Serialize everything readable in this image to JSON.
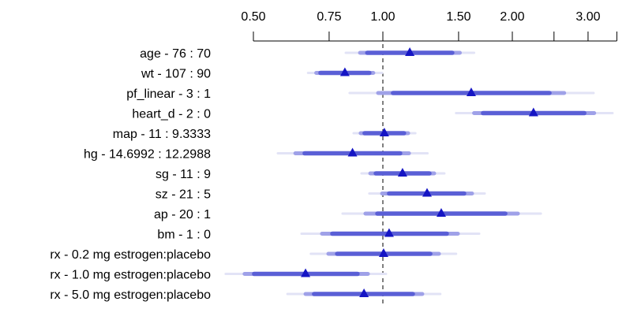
{
  "chart_data": {
    "type": "forest",
    "title": "",
    "xlabel": "",
    "x_scale": "log",
    "xlim": [
      0.42,
      3.6
    ],
    "x_ticks": [
      {
        "value": 0.5,
        "label": "0.50"
      },
      {
        "value": 0.75,
        "label": "0.75"
      },
      {
        "value": 1.0,
        "label": "1.00"
      },
      {
        "value": 1.5,
        "label": "1.50"
      },
      {
        "value": 2.0,
        "label": "2.00"
      },
      {
        "value": 2.5,
        "label": ""
      },
      {
        "value": 3.0,
        "label": "3.00"
      },
      {
        "value": 3.5,
        "label": ""
      }
    ],
    "reference_line": 1.0,
    "grid": false,
    "colors": {
      "ci_inner": "#5a5fd6",
      "ci_middle": "#9fa1e8",
      "ci_outer": "#e2e3f6",
      "point": "#1515c4",
      "reference": "#000000"
    },
    "rows": [
      {
        "label": "age - 76 : 70",
        "estimate": 1.155,
        "ci_inner": [
          0.92,
          1.45
        ],
        "ci_middle": [
          0.885,
          1.51
        ],
        "ci_outer": [
          0.82,
          1.63
        ]
      },
      {
        "label": "wt - 107 : 90",
        "estimate": 0.816,
        "ci_inner": [
          0.716,
          0.93
        ],
        "ci_middle": [
          0.7,
          0.95
        ],
        "ci_outer": [
          0.67,
          0.996
        ]
      },
      {
        "label": "pf_linear - 3 : 1",
        "estimate": 1.605,
        "ci_inner": [
          1.056,
          2.44
        ],
        "ci_middle": [
          0.975,
          2.64
        ],
        "ci_outer": [
          0.837,
          3.09
        ]
      },
      {
        "label": "heart_d - 2 : 0",
        "estimate": 2.24,
        "ci_inner": [
          1.71,
          2.94
        ],
        "ci_middle": [
          1.63,
          3.1
        ],
        "ci_outer": [
          1.48,
          3.42
        ]
      },
      {
        "label": "map - 11 : 9.3333",
        "estimate": 1.008,
        "ci_inner": [
          0.907,
          1.12
        ],
        "ci_middle": [
          0.888,
          1.145
        ],
        "ci_outer": [
          0.855,
          1.19
        ]
      },
      {
        "label": "hg - 14.6992 : 12.2988",
        "estimate": 0.85,
        "ci_inner": [
          0.658,
          1.097
        ],
        "ci_middle": [
          0.626,
          1.15
        ],
        "ci_outer": [
          0.57,
          1.27
        ]
      },
      {
        "label": "sg - 11 : 9",
        "estimate": 1.111,
        "ci_inner": [
          0.963,
          1.283
        ],
        "ci_middle": [
          0.935,
          1.316
        ],
        "ci_outer": [
          0.892,
          1.39
        ]
      },
      {
        "label": "sz - 21 : 5",
        "estimate": 1.267,
        "ci_inner": [
          1.034,
          1.545
        ],
        "ci_middle": [
          0.996,
          1.612
        ],
        "ci_outer": [
          0.93,
          1.725
        ]
      },
      {
        "label": "ap - 20 : 1",
        "estimate": 1.367,
        "ci_inner": [
          0.971,
          1.926
        ],
        "ci_middle": [
          0.911,
          2.06
        ],
        "ci_outer": [
          0.806,
          2.33
        ]
      },
      {
        "label": "bm - 1 : 0",
        "estimate": 1.034,
        "ci_inner": [
          0.763,
          1.408
        ],
        "ci_middle": [
          0.722,
          1.494
        ],
        "ci_outer": [
          0.647,
          1.675
        ]
      },
      {
        "label": "rx - 0.2 mg estrogen:placebo",
        "estimate": 1.004,
        "ci_inner": [
          0.783,
          1.289
        ],
        "ci_middle": [
          0.747,
          1.35
        ],
        "ci_outer": [
          0.68,
          1.48
        ]
      },
      {
        "label": "rx - 1.0 mg estrogen:placebo",
        "estimate": 0.661,
        "ci_inner": [
          0.502,
          0.873
        ],
        "ci_middle": [
          0.477,
          0.923
        ],
        "ci_outer": [
          0.431,
          1.017
        ]
      },
      {
        "label": "rx - 5.0 mg estrogen:placebo",
        "estimate": 0.904,
        "ci_inner": [
          0.692,
          1.174
        ],
        "ci_middle": [
          0.661,
          1.235
        ],
        "ci_outer": [
          0.6,
          1.36
        ]
      }
    ]
  }
}
